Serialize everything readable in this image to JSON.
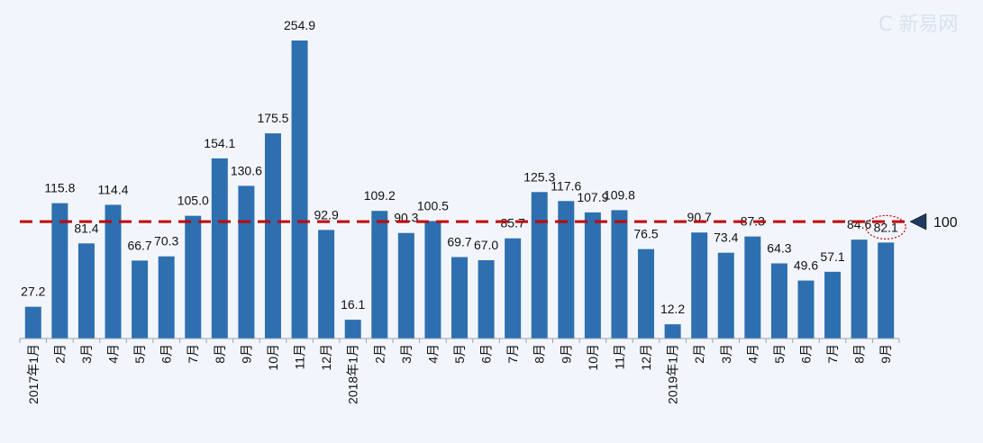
{
  "chart_data": {
    "type": "bar",
    "categories": [
      "2017年1月",
      "2月",
      "3月",
      "4月",
      "5月",
      "6月",
      "7月",
      "8月",
      "9月",
      "10月",
      "11月",
      "12月",
      "2018年1月",
      "2月",
      "3月",
      "4月",
      "5月",
      "6月",
      "7月",
      "8月",
      "9月",
      "10月",
      "11月",
      "12月",
      "2019年1月",
      "2月",
      "3月",
      "4月",
      "5月",
      "6月",
      "7月",
      "8月",
      "9月"
    ],
    "values": [
      27.2,
      115.8,
      81.4,
      114.4,
      66.7,
      70.3,
      105.0,
      154.1,
      130.6,
      175.5,
      254.9,
      92.9,
      16.1,
      109.2,
      90.3,
      100.5,
      69.7,
      67.0,
      85.7,
      125.3,
      117.6,
      107.9,
      109.8,
      76.5,
      12.2,
      90.7,
      73.4,
      87.3,
      64.3,
      49.6,
      57.1,
      84.6,
      82.1
    ],
    "value_labels": [
      "27.2",
      "115.8",
      "81.4",
      "114.4",
      "66.7",
      "70.3",
      "105.0",
      "154.1",
      "130.6",
      "175.5",
      "254.9",
      "92.9",
      "16.1",
      "109.2",
      "90.3",
      "100.5",
      "69.7",
      "67.0",
      "85.7",
      "125.3",
      "117.6",
      "107.9",
      "109.8",
      "76.5",
      "12.2",
      "90.7",
      "73.4",
      "87.3",
      "64.3",
      "49.6",
      "57.1",
      "84.6",
      "82.1"
    ],
    "reference_line": {
      "value": 100,
      "label": "100",
      "color": "#c00000",
      "style": "dashed"
    },
    "highlight_index": 32,
    "bar_color": "#2e6fb0",
    "title": "",
    "xlabel": "",
    "ylabel": "",
    "ylim": [
      0,
      254.9
    ],
    "grid": false,
    "legend": "none"
  },
  "watermark_text": "C 新易网"
}
